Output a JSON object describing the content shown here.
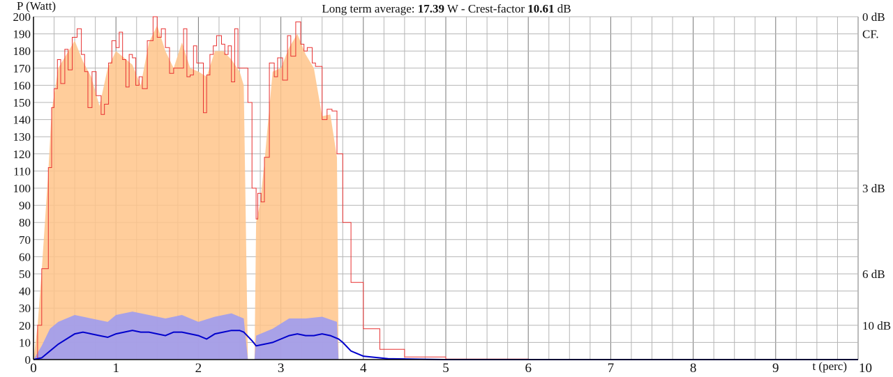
{
  "chart_data": {
    "type": "line",
    "title": {
      "prefix": "Long term average: ",
      "average": "17.39",
      "unit_mid": " W - Crest-factor ",
      "crest": "10.61",
      "unit_end": " dB"
    },
    "ylabel": "P (Watt)",
    "xlabel": "t (perc)",
    "xlim": [
      0,
      10
    ],
    "ylim": [
      0,
      200
    ],
    "x_ticks": [
      "0",
      "1",
      "2",
      "3",
      "4",
      "5",
      "6",
      "7",
      "8",
      "9",
      "10"
    ],
    "y_ticks": [
      "0",
      "10",
      "20",
      "30",
      "40",
      "50",
      "60",
      "70",
      "80",
      "90",
      "100",
      "110",
      "120",
      "130",
      "140",
      "150",
      "160",
      "170",
      "180",
      "190",
      "200"
    ],
    "right_axis": [
      {
        "label": "0 dB",
        "value": 200
      },
      {
        "label": "CF.",
        "value": 190
      },
      {
        "label": "3 dB",
        "value": 100
      },
      {
        "label": "6 dB",
        "value": 50
      },
      {
        "label": "10 dB",
        "value": 20
      }
    ],
    "grid": true,
    "series": [
      {
        "color": "#e83030",
        "style": "step",
        "points": [
          [
            0.0,
            0
          ],
          [
            0.05,
            20
          ],
          [
            0.1,
            53
          ],
          [
            0.18,
            112
          ],
          [
            0.22,
            147
          ],
          [
            0.25,
            158
          ],
          [
            0.29,
            175
          ],
          [
            0.33,
            161
          ],
          [
            0.38,
            181
          ],
          [
            0.42,
            169
          ],
          [
            0.47,
            188
          ],
          [
            0.53,
            193
          ],
          [
            0.58,
            178
          ],
          [
            0.62,
            168
          ],
          [
            0.66,
            147
          ],
          [
            0.71,
            168
          ],
          [
            0.76,
            154
          ],
          [
            0.82,
            143
          ],
          [
            0.86,
            149
          ],
          [
            0.91,
            173
          ],
          [
            0.95,
            186
          ],
          [
            1.0,
            182
          ],
          [
            1.04,
            191
          ],
          [
            1.08,
            175
          ],
          [
            1.12,
            159
          ],
          [
            1.16,
            178
          ],
          [
            1.2,
            176
          ],
          [
            1.24,
            160
          ],
          [
            1.28,
            165
          ],
          [
            1.32,
            158
          ],
          [
            1.38,
            186
          ],
          [
            1.45,
            200
          ],
          [
            1.5,
            188
          ],
          [
            1.55,
            193
          ],
          [
            1.6,
            182
          ],
          [
            1.65,
            167
          ],
          [
            1.7,
            170
          ],
          [
            1.76,
            170
          ],
          [
            1.82,
            193
          ],
          [
            1.86,
            165
          ],
          [
            1.9,
            166
          ],
          [
            1.94,
            183
          ],
          [
            1.98,
            173
          ],
          [
            2.02,
            173
          ],
          [
            2.06,
            144
          ],
          [
            2.1,
            166
          ],
          [
            2.14,
            178
          ],
          [
            2.18,
            183
          ],
          [
            2.22,
            189
          ],
          [
            2.28,
            184
          ],
          [
            2.32,
            178
          ],
          [
            2.36,
            183
          ],
          [
            2.4,
            162
          ],
          [
            2.44,
            193
          ],
          [
            2.48,
            170
          ],
          [
            2.55,
            170
          ],
          [
            2.6,
            150
          ],
          [
            2.65,
            100
          ],
          [
            2.7,
            82
          ],
          [
            2.72,
            97
          ],
          [
            2.76,
            92
          ],
          [
            2.8,
            118
          ],
          [
            2.86,
            173
          ],
          [
            2.92,
            165
          ],
          [
            2.96,
            176
          ],
          [
            3.02,
            163
          ],
          [
            3.08,
            189
          ],
          [
            3.12,
            177
          ],
          [
            3.18,
            197
          ],
          [
            3.24,
            184
          ],
          [
            3.28,
            180
          ],
          [
            3.32,
            182
          ],
          [
            3.38,
            173
          ],
          [
            3.42,
            171
          ],
          [
            3.5,
            140
          ],
          [
            3.56,
            146
          ],
          [
            3.62,
            145
          ],
          [
            3.68,
            120
          ],
          [
            3.75,
            80
          ],
          [
            3.85,
            45
          ],
          [
            4.0,
            18
          ],
          [
            4.2,
            6
          ],
          [
            4.5,
            1.5
          ],
          [
            5.0,
            0.3
          ],
          [
            6.0,
            0
          ],
          [
            10.0,
            0
          ]
        ]
      },
      {
        "color": "#0000cc",
        "style": "line",
        "points": [
          [
            0.0,
            0
          ],
          [
            0.1,
            1
          ],
          [
            0.2,
            5
          ],
          [
            0.3,
            9
          ],
          [
            0.4,
            12
          ],
          [
            0.5,
            15
          ],
          [
            0.6,
            16
          ],
          [
            0.7,
            15
          ],
          [
            0.8,
            14
          ],
          [
            0.9,
            13
          ],
          [
            1.0,
            15
          ],
          [
            1.1,
            16
          ],
          [
            1.2,
            17
          ],
          [
            1.3,
            16
          ],
          [
            1.4,
            16
          ],
          [
            1.5,
            15
          ],
          [
            1.6,
            14
          ],
          [
            1.7,
            16
          ],
          [
            1.8,
            16
          ],
          [
            1.9,
            15
          ],
          [
            2.0,
            14
          ],
          [
            2.1,
            12
          ],
          [
            2.2,
            15
          ],
          [
            2.3,
            16
          ],
          [
            2.4,
            17
          ],
          [
            2.5,
            17
          ],
          [
            2.55,
            16
          ],
          [
            2.65,
            11
          ],
          [
            2.7,
            8
          ],
          [
            2.8,
            9
          ],
          [
            2.9,
            10
          ],
          [
            3.0,
            12
          ],
          [
            3.1,
            14
          ],
          [
            3.2,
            15
          ],
          [
            3.3,
            14
          ],
          [
            3.4,
            14
          ],
          [
            3.5,
            15
          ],
          [
            3.6,
            14
          ],
          [
            3.7,
            12
          ],
          [
            3.75,
            10
          ],
          [
            3.85,
            5
          ],
          [
            4.0,
            2
          ],
          [
            4.3,
            0.5
          ],
          [
            5.0,
            0
          ],
          [
            10.0,
            0
          ]
        ]
      },
      {
        "color": "#ffc48a",
        "style": "envelope",
        "points": [
          [
            0.0,
            0
          ],
          [
            0.05,
            20
          ],
          [
            0.1,
            52
          ],
          [
            0.18,
            110
          ],
          [
            0.22,
            145
          ],
          [
            0.3,
            170
          ],
          [
            0.4,
            178
          ],
          [
            0.5,
            186
          ],
          [
            0.6,
            174
          ],
          [
            0.7,
            165
          ],
          [
            0.8,
            148
          ],
          [
            0.9,
            170
          ],
          [
            1.0,
            180
          ],
          [
            1.1,
            176
          ],
          [
            1.2,
            172
          ],
          [
            1.3,
            160
          ],
          [
            1.4,
            185
          ],
          [
            1.5,
            195
          ],
          [
            1.6,
            180
          ],
          [
            1.7,
            170
          ],
          [
            1.8,
            185
          ],
          [
            1.9,
            170
          ],
          [
            2.0,
            168
          ],
          [
            2.1,
            165
          ],
          [
            2.2,
            180
          ],
          [
            2.3,
            180
          ],
          [
            2.4,
            175
          ],
          [
            2.5,
            168
          ],
          [
            2.55,
            160
          ],
          [
            2.6,
            0
          ],
          [
            2.68,
            0
          ],
          [
            2.7,
            80
          ],
          [
            2.75,
            92
          ],
          [
            2.8,
            115
          ],
          [
            2.9,
            168
          ],
          [
            3.0,
            170
          ],
          [
            3.1,
            182
          ],
          [
            3.2,
            190
          ],
          [
            3.3,
            178
          ],
          [
            3.4,
            170
          ],
          [
            3.5,
            142
          ],
          [
            3.6,
            143
          ],
          [
            3.68,
            118
          ],
          [
            3.7,
            0
          ],
          [
            10.0,
            0
          ]
        ]
      },
      {
        "color": "#9999f5",
        "style": "envelope",
        "points": [
          [
            0.0,
            0
          ],
          [
            0.1,
            8
          ],
          [
            0.2,
            18
          ],
          [
            0.3,
            22
          ],
          [
            0.5,
            26
          ],
          [
            0.7,
            24
          ],
          [
            0.9,
            22
          ],
          [
            1.0,
            26
          ],
          [
            1.2,
            28
          ],
          [
            1.4,
            26
          ],
          [
            1.6,
            24
          ],
          [
            1.8,
            26
          ],
          [
            2.0,
            22
          ],
          [
            2.2,
            25
          ],
          [
            2.4,
            27
          ],
          [
            2.55,
            24
          ],
          [
            2.6,
            0
          ],
          [
            2.68,
            0
          ],
          [
            2.7,
            14
          ],
          [
            2.9,
            18
          ],
          [
            3.1,
            24
          ],
          [
            3.3,
            24
          ],
          [
            3.5,
            25
          ],
          [
            3.68,
            22
          ],
          [
            3.7,
            0
          ],
          [
            10.0,
            0
          ]
        ]
      }
    ]
  }
}
